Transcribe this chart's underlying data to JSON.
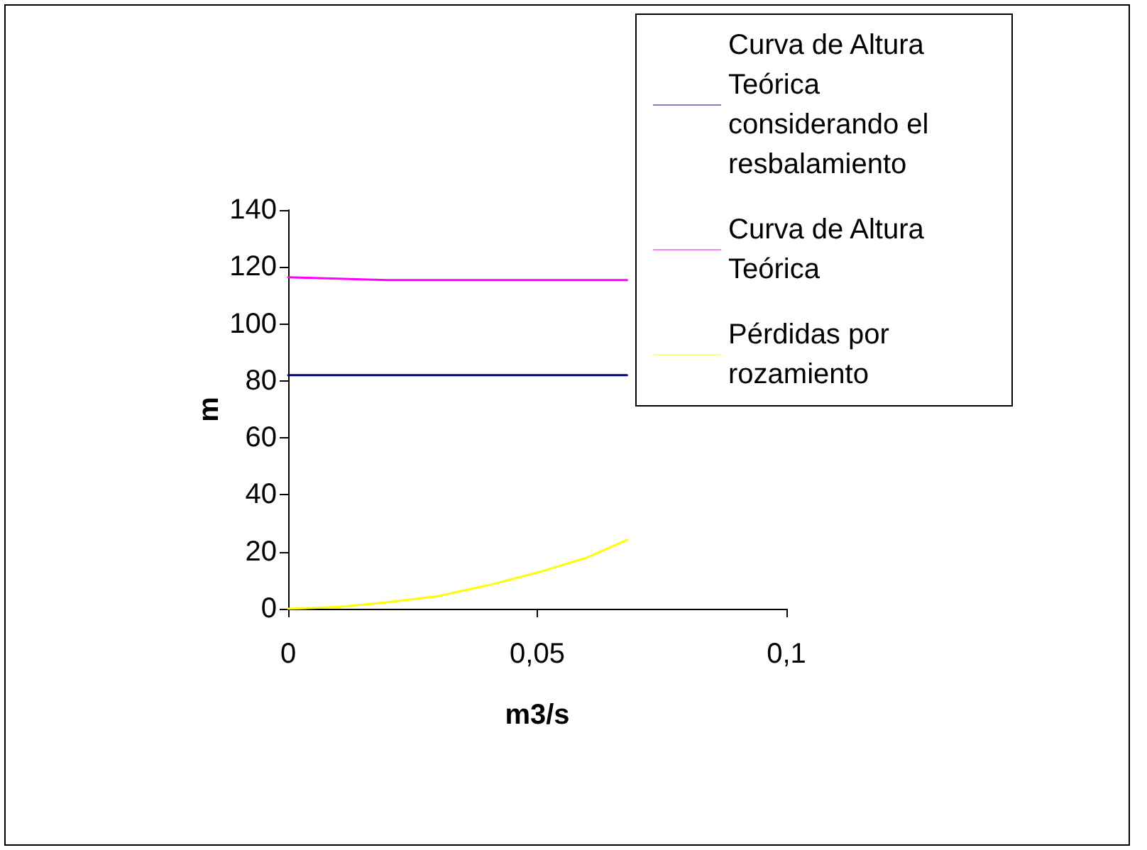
{
  "chart_data": {
    "type": "line",
    "xlabel": "m3/s",
    "ylabel": "m",
    "xlim": [
      0,
      0.1
    ],
    "xticks": [
      0,
      {
        "value": 0.05,
        "label": "0,05"
      },
      {
        "value": 0.1,
        "label": "0,1"
      }
    ],
    "ylim": [
      0,
      140
    ],
    "yticks": [
      0,
      20,
      40,
      60,
      80,
      100,
      120,
      140
    ],
    "grid": false,
    "legend": "right",
    "marker": "none",
    "line_style": "solid",
    "x": [
      0,
      0.01,
      0.02,
      0.03,
      0.04,
      0.05,
      0.06,
      0.068
    ],
    "series": [
      {
        "name": "Curva de Altura Teórica considerando el resbalamiento",
        "color": "#000080",
        "values": [
          82,
          82,
          82,
          82,
          82,
          82,
          82,
          82
        ]
      },
      {
        "name": "Curva de Altura Teórica",
        "color": "#ff00ff",
        "values": [
          116.4,
          115.9,
          115.4,
          115.4,
          115.4,
          115.4,
          115.4,
          115.4
        ]
      },
      {
        "name": "Pérdidas por rozamiento",
        "color": "#ffff00",
        "values": [
          0,
          0.6,
          2.3,
          4.4,
          8.2,
          12.7,
          18,
          24.2
        ]
      }
    ]
  }
}
